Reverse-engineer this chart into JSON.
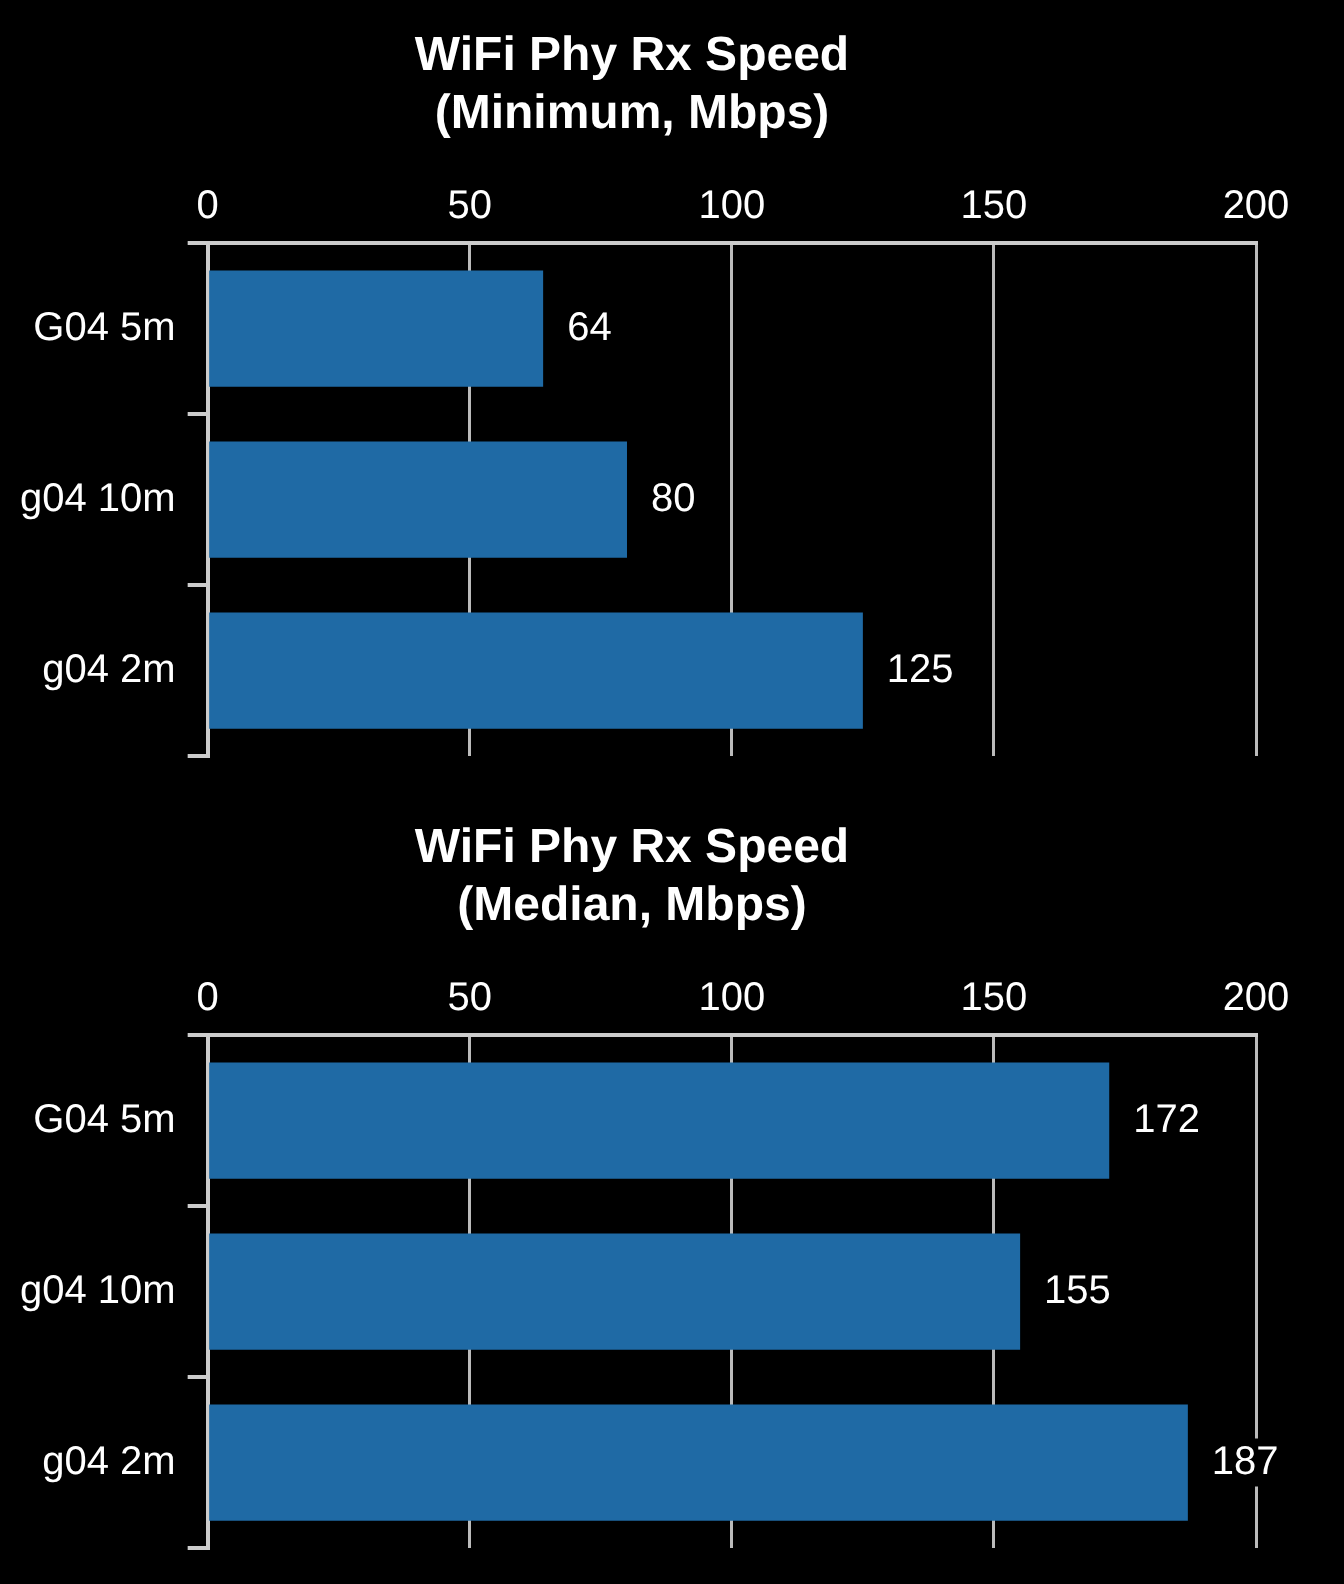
{
  "chart_data": [
    {
      "type": "bar",
      "orientation": "horizontal",
      "title": "WiFi Phy Rx Speed\n(Minimum, Mbps)",
      "categories": [
        "G04 5m",
        "g04 10m",
        "g04 2m"
      ],
      "values": [
        64,
        80,
        125
      ],
      "color": "#1f6aa5",
      "xlim": [
        0,
        200
      ],
      "xticks": [
        0,
        50,
        100,
        150,
        200
      ],
      "grid": "x",
      "data_labels": true
    },
    {
      "type": "bar",
      "orientation": "horizontal",
      "title": "WiFi Phy Rx Speed\n(Median, Mbps)",
      "categories": [
        "G04 5m",
        "g04 10m",
        "g04 2m"
      ],
      "values": [
        172,
        155,
        187
      ],
      "color": "#1f6aa5",
      "xlim": [
        0,
        200
      ],
      "xticks": [
        0,
        50,
        100,
        150,
        200
      ],
      "grid": "x",
      "data_labels": true
    }
  ]
}
